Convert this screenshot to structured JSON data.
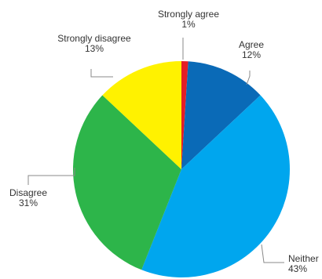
{
  "chart_data": {
    "type": "pie",
    "start": "top",
    "direction": "clockwise",
    "slices": [
      {
        "label": "Strongly agree",
        "value": 1,
        "value_label": "1%",
        "color": "#e41e26"
      },
      {
        "label": "Agree",
        "value": 12,
        "value_label": "12%",
        "color": "#0a6ab7"
      },
      {
        "label": "Neither",
        "value": 43,
        "value_label": "43%",
        "color": "#00a6ee"
      },
      {
        "label": "Disagree",
        "value": 31,
        "value_label": "31%",
        "color": "#2db54a"
      },
      {
        "label": "Strongly disagree",
        "value": 13,
        "value_label": "13%",
        "color": "#fff200"
      }
    ]
  }
}
